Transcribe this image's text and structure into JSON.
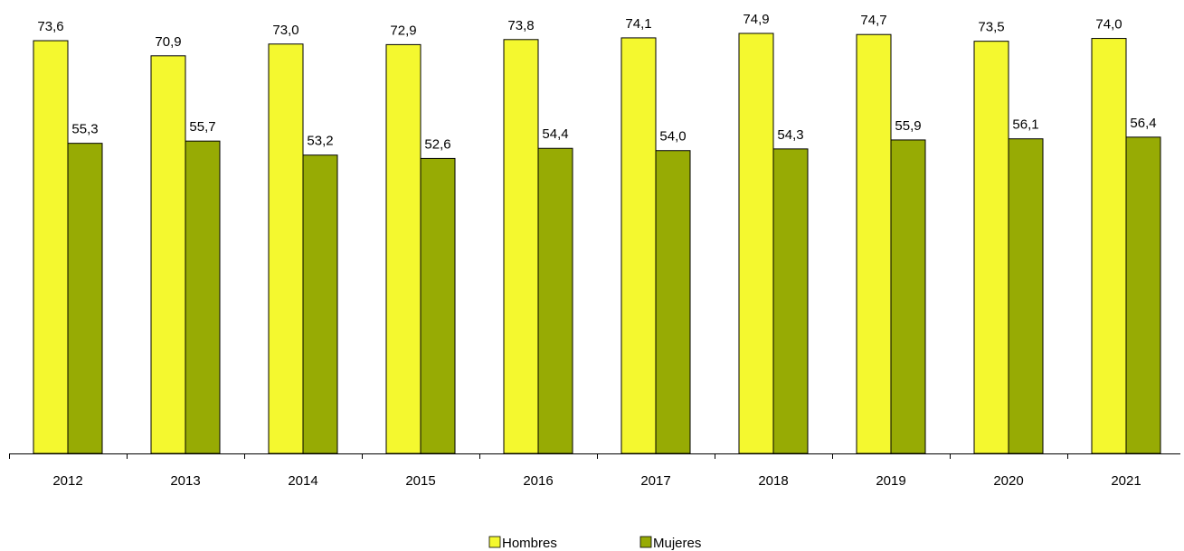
{
  "chart_data": {
    "type": "bar",
    "categories": [
      "2012",
      "2013",
      "2014",
      "2015",
      "2016",
      "2017",
      "2018",
      "2019",
      "2020",
      "2021"
    ],
    "series": [
      {
        "name": "Hombres",
        "color": "#f4f82f",
        "values": [
          73.6,
          70.9,
          73.0,
          72.9,
          73.8,
          74.1,
          74.9,
          74.7,
          73.5,
          74.0
        ]
      },
      {
        "name": "Mujeres",
        "color": "#97ab04",
        "values": [
          55.3,
          55.7,
          53.2,
          52.6,
          54.4,
          54.0,
          54.3,
          55.9,
          56.1,
          56.4
        ]
      }
    ],
    "value_labels": {
      "Hombres": [
        "73,6",
        "70,9",
        "73,0",
        "72,9",
        "73,8",
        "74,1",
        "74,9",
        "74,7",
        "73,5",
        "74,0"
      ],
      "Mujeres": [
        "55,3",
        "55,7",
        "53,2",
        "52,6",
        "54,4",
        "54,0",
        "54,3",
        "55,9",
        "56,1",
        "56,4"
      ]
    },
    "ylim": [
      0,
      75.7
    ],
    "grid": false,
    "legend_position": "bottom-center"
  }
}
